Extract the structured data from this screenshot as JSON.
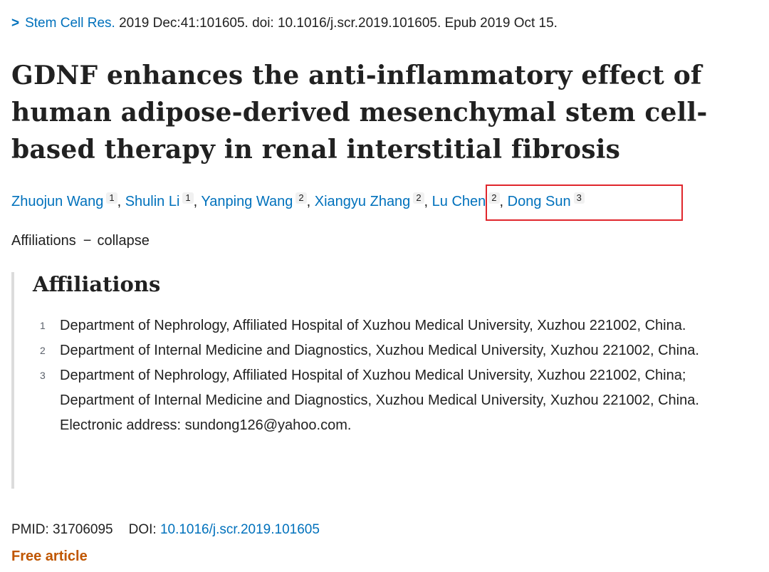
{
  "citation": {
    "chevron": ">",
    "journal": "Stem Cell Res.",
    "details": " 2019 Dec:41:101605. doi: 10.1016/j.scr.2019.101605. Epub 2019 Oct 15."
  },
  "title": "GDNF enhances the anti-inflammatory effect of human adipose-derived mesenchymal stem cell-based therapy in renal interstitial fibrosis",
  "authors": [
    {
      "name": "Zhuojun Wang",
      "aff": "1"
    },
    {
      "name": "Shulin Li",
      "aff": "1"
    },
    {
      "name": "Yanping Wang",
      "aff": "2"
    },
    {
      "name": "Xiangyu Zhang",
      "aff": "2"
    },
    {
      "name": "Lu Chen",
      "aff": "2"
    },
    {
      "name": "Dong Sun",
      "aff": "3"
    }
  ],
  "separator": ", ",
  "affiliations_toggle": {
    "label": "Affiliations",
    "dash": "−",
    "action": "collapse"
  },
  "affiliations": {
    "heading": "Affiliations",
    "items": [
      {
        "num": "1",
        "text": "Department of Nephrology, Affiliated Hospital of Xuzhou Medical University, Xuzhou 221002, China."
      },
      {
        "num": "2",
        "text": "Department of Internal Medicine and Diagnostics, Xuzhou Medical University, Xuzhou 221002, China."
      },
      {
        "num": "3",
        "text": "Department of Nephrology, Affiliated Hospital of Xuzhou Medical University, Xuzhou 221002, China; Department of Internal Medicine and Diagnostics, Xuzhou Medical University, Xuzhou 221002, China. Electronic address: sundong126@yahoo.com."
      }
    ]
  },
  "meta": {
    "pmid_label": "PMID: 31706095",
    "doi_label": "DOI: ",
    "doi_value": "10.1016/j.scr.2019.101605"
  },
  "free_article": "Free article",
  "colors": {
    "link": "#0071bc",
    "highlight_border": "#e0262c",
    "free_article": "#c05600"
  }
}
